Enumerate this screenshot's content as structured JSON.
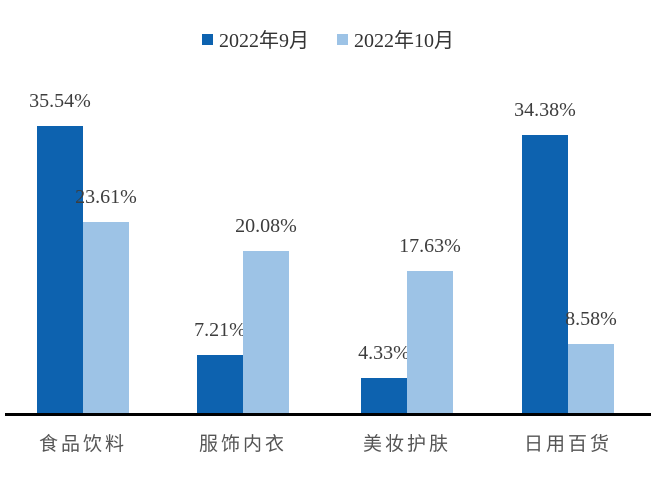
{
  "chart_data": {
    "type": "bar",
    "title": "",
    "categories": [
      "食品饮料",
      "服饰内衣",
      "美妆护肤",
      "日用百货"
    ],
    "series": [
      {
        "name": "2022年9月",
        "color": "#0D62AF",
        "values": [
          35.54,
          7.21,
          4.33,
          34.38
        ]
      },
      {
        "name": "2022年10月",
        "color": "#9DC3E6",
        "values": [
          23.61,
          20.08,
          17.63,
          8.58
        ]
      }
    ],
    "data_labels": [
      "35.54%",
      "7.21%",
      "4.33%",
      "34.38%",
      "23.61%",
      "20.08%",
      "17.63%",
      "8.58%"
    ],
    "value_suffix": "%",
    "xlabel": "",
    "ylabel": "",
    "ylim": [
      0,
      38
    ],
    "grid": false,
    "legend_position": "top",
    "axis_line_color": "#000000"
  },
  "colors": {
    "background": "#ffffff",
    "series_dark": "#0D62AF",
    "series_light": "#9DC3E6",
    "value_label_text": "#3d3d3d",
    "category_text": "#555555",
    "axis_line": "#000000"
  }
}
